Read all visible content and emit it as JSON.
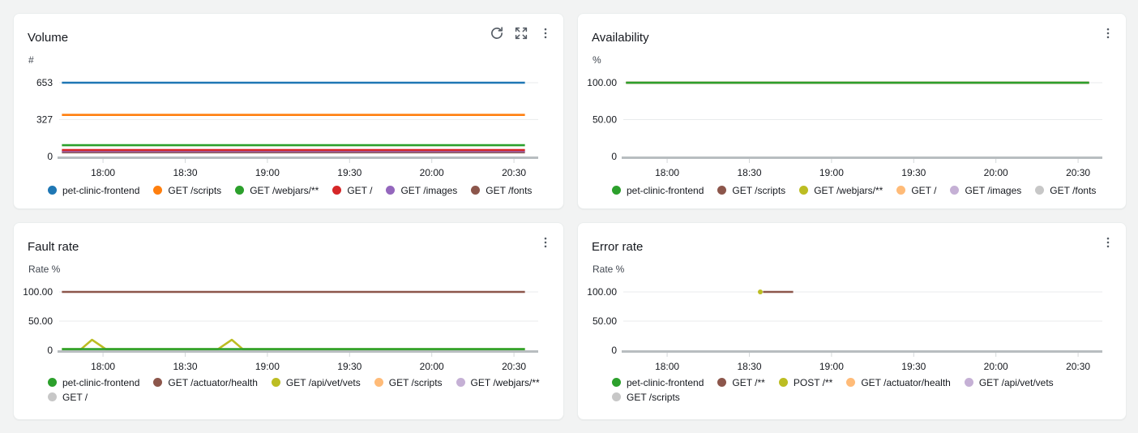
{
  "page": {
    "background": "#f2f3f3"
  },
  "chart_data": [
    {
      "id": "volume",
      "type": "line",
      "title": "Volume",
      "ylabel": "#",
      "y_ticks": [
        "653",
        "327",
        "0"
      ],
      "x_ticks": [
        "18:00",
        "18:30",
        "19:00",
        "19:30",
        "20:00",
        "20:30"
      ],
      "x_range": [
        "17:44",
        "20:35"
      ],
      "actions": [
        "refresh",
        "maximize",
        "menu"
      ],
      "series": [
        {
          "name": "pet-clinic-frontend",
          "color": "#1f77b4",
          "points": [
            [
              "17:45",
              653
            ],
            [
              "20:34",
              653
            ]
          ]
        },
        {
          "name": "GET /scripts",
          "color": "#ff7f0e",
          "points": [
            [
              "17:45",
              368
            ],
            [
              "20:34",
              368
            ]
          ]
        },
        {
          "name": "GET /webjars/**",
          "color": "#2ca02c",
          "points": [
            [
              "17:45",
              100
            ],
            [
              "20:34",
              100
            ]
          ]
        },
        {
          "name": "GET /",
          "color": "#d62728",
          "points": [
            [
              "17:45",
              57
            ],
            [
              "20:34",
              57
            ]
          ]
        },
        {
          "name": "GET /images",
          "color": "#9467bd",
          "points": [
            [
              "17:45",
              47
            ],
            [
              "20:34",
              47
            ]
          ]
        },
        {
          "name": "GET /fonts",
          "color": "#8c564b",
          "points": [
            [
              "17:45",
              37
            ],
            [
              "20:34",
              37
            ]
          ]
        }
      ]
    },
    {
      "id": "availability",
      "type": "line",
      "title": "Availability",
      "ylabel": "%",
      "y_ticks": [
        "100.00",
        "50.00",
        "0"
      ],
      "x_ticks": [
        "18:00",
        "18:30",
        "19:00",
        "19:30",
        "20:00",
        "20:30"
      ],
      "x_range": [
        "17:44",
        "20:35"
      ],
      "actions": [
        "menu"
      ],
      "series": [
        {
          "name": "pet-clinic-frontend",
          "color": "#2ca02c",
          "points": [
            [
              "17:45",
              100
            ],
            [
              "20:34",
              100
            ]
          ]
        },
        {
          "name": "GET /scripts",
          "color": "#8c564b",
          "points": [
            [
              "17:45",
              100
            ],
            [
              "20:34",
              100
            ]
          ]
        },
        {
          "name": "GET /webjars/**",
          "color": "#bcbd22",
          "points": [
            [
              "17:45",
              100
            ],
            [
              "20:34",
              100
            ]
          ]
        },
        {
          "name": "GET /",
          "color": "#ffbb78",
          "points": [
            [
              "17:45",
              100
            ],
            [
              "20:34",
              100
            ]
          ]
        },
        {
          "name": "GET /images",
          "color": "#c5b0d5",
          "points": [
            [
              "17:45",
              100
            ],
            [
              "20:34",
              100
            ]
          ]
        },
        {
          "name": "GET /fonts",
          "color": "#c7c7c7",
          "points": [
            [
              "17:45",
              100
            ],
            [
              "20:34",
              100
            ]
          ]
        }
      ]
    },
    {
      "id": "fault-rate",
      "type": "line",
      "title": "Fault rate",
      "ylabel": "Rate %",
      "y_ticks": [
        "100.00",
        "50.00",
        "0"
      ],
      "x_ticks": [
        "18:00",
        "18:30",
        "19:00",
        "19:30",
        "20:00",
        "20:30"
      ],
      "x_range": [
        "17:44",
        "20:35"
      ],
      "actions": [
        "menu"
      ],
      "series": [
        {
          "name": "pet-clinic-frontend",
          "color": "#2ca02c",
          "points": [
            [
              "17:45",
              2
            ],
            [
              "20:34",
              2
            ]
          ]
        },
        {
          "name": "GET /actuator/health",
          "color": "#8c564b",
          "points": [
            [
              "17:45",
              100
            ],
            [
              "20:34",
              100
            ]
          ]
        },
        {
          "name": "GET /api/vet/vets",
          "color": "#bcbd22",
          "points": [
            [
              "17:45",
              2
            ],
            [
              "17:52",
              2
            ],
            [
              "17:56",
              18
            ],
            [
              "18:01",
              2
            ],
            [
              "18:42",
              2
            ],
            [
              "18:47",
              18
            ],
            [
              "18:51",
              2
            ],
            [
              "20:34",
              2
            ]
          ]
        },
        {
          "name": "GET /scripts",
          "color": "#ffbb78",
          "points": []
        },
        {
          "name": "GET /webjars/**",
          "color": "#c5b0d5",
          "points": []
        },
        {
          "name": "GET /",
          "color": "#c7c7c7",
          "points": []
        }
      ]
    },
    {
      "id": "error-rate",
      "type": "line",
      "title": "Error rate",
      "ylabel": "Rate %",
      "y_ticks": [
        "100.00",
        "50.00",
        "0"
      ],
      "x_ticks": [
        "18:00",
        "18:30",
        "19:00",
        "19:30",
        "20:00",
        "20:30"
      ],
      "x_range": [
        "17:44",
        "20:35"
      ],
      "actions": [
        "menu"
      ],
      "series": [
        {
          "name": "pet-clinic-frontend",
          "color": "#2ca02c",
          "points": []
        },
        {
          "name": "GET /**",
          "color": "#8c564b",
          "points": [
            [
              "18:35",
              100
            ],
            [
              "18:46",
              100
            ]
          ]
        },
        {
          "name": "POST /**",
          "color": "#bcbd22",
          "points": [
            [
              "18:34",
              100
            ]
          ]
        },
        {
          "name": "GET /actuator/health",
          "color": "#ffbb78",
          "points": []
        },
        {
          "name": "GET /api/vet/vets",
          "color": "#c5b0d5",
          "points": []
        },
        {
          "name": "GET /scripts",
          "color": "#c7c7c7",
          "points": []
        }
      ]
    }
  ]
}
